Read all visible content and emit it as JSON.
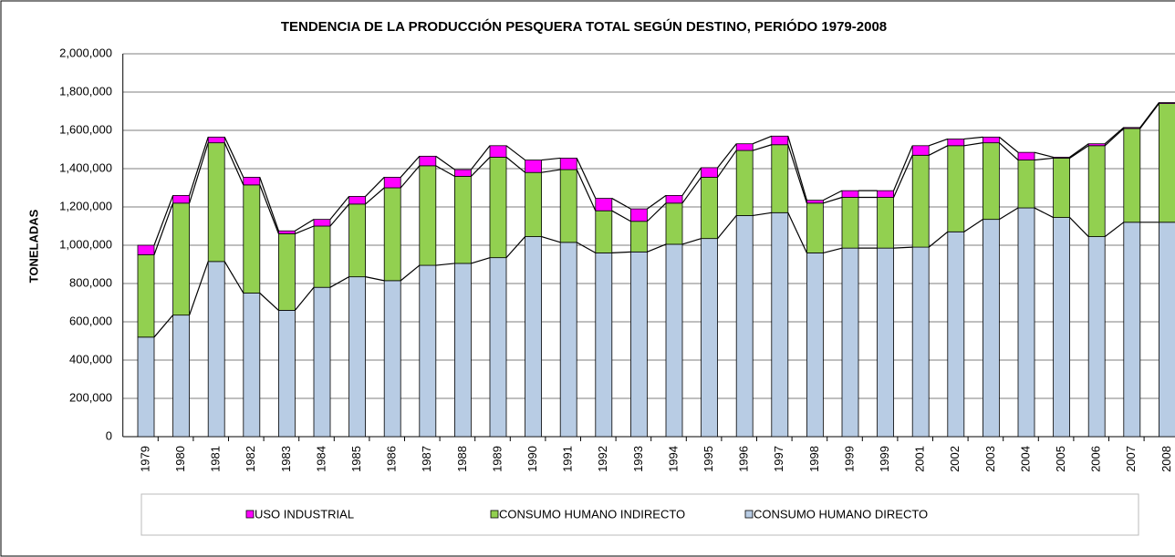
{
  "chart_data": {
    "type": "stacked_bar",
    "title": "TENDENCIA DE LA PRODUCCIÓN  PESQUERA TOTAL SEGÚN  DESTINO,  PERIÓDO 1979-2008",
    "y_label": "TONELADAS",
    "categories": [
      "1979",
      "1980",
      "1981",
      "1982",
      "1983",
      "1984",
      "1985",
      "1986",
      "1987",
      "1988",
      "1989",
      "1990",
      "1991",
      "1992",
      "1993",
      "1994",
      "1995",
      "1996",
      "1997",
      "1998",
      "1999",
      "1999",
      "2001",
      "2002",
      "2003",
      "2004",
      "2005",
      "2006",
      "2007",
      "2008"
    ],
    "series": [
      {
        "name": "CONSUMO HUMANO DIRECTO",
        "color": "#b8cce4",
        "values": [
          520000,
          635000,
          915000,
          750000,
          660000,
          780000,
          835000,
          815000,
          895000,
          905000,
          935000,
          1045000,
          1015000,
          960000,
          965000,
          1005000,
          1035000,
          1155000,
          1170000,
          960000,
          985000,
          985000,
          990000,
          1070000,
          1135000,
          1195000,
          1145000,
          1045000,
          1120000,
          1120000
        ]
      },
      {
        "name": "CONSUMO HUMANO INDIRECTO",
        "color": "#92d050",
        "values": [
          430000,
          585000,
          620000,
          565000,
          400000,
          320000,
          380000,
          485000,
          520000,
          455000,
          525000,
          335000,
          380000,
          220000,
          160000,
          215000,
          320000,
          340000,
          355000,
          260000,
          265000,
          265000,
          480000,
          450000,
          400000,
          250000,
          310000,
          475000,
          490000,
          620000
        ]
      },
      {
        "name": "USO INDUSTRIAL",
        "color": "#ff00ff",
        "values": [
          50000,
          40000,
          30000,
          40000,
          15000,
          35000,
          40000,
          55000,
          50000,
          35000,
          60000,
          65000,
          60000,
          65000,
          65000,
          40000,
          50000,
          35000,
          45000,
          15000,
          35000,
          35000,
          50000,
          35000,
          30000,
          40000,
          5000,
          10000,
          5000,
          5000
        ]
      }
    ],
    "ylim": [
      0,
      2000000
    ],
    "yticks": [
      0,
      {
        "value": 200000,
        "label": "200,000"
      },
      {
        "value": 400000,
        "label": "400,000"
      },
      {
        "value": 600000,
        "label": "600,000"
      },
      {
        "value": 800000,
        "label": "800,000"
      },
      {
        "value": 1000000,
        "label": "1,000,000"
      },
      {
        "value": 1200000,
        "label": "1,200,000"
      },
      {
        "value": 1400000,
        "label": "1,400,000"
      },
      {
        "value": 1600000,
        "label": "1,600,000"
      },
      {
        "value": 1800000,
        "label": "1,800,000"
      },
      {
        "value": 2000000,
        "label": "2,000,000"
      }
    ],
    "grid": true
  }
}
